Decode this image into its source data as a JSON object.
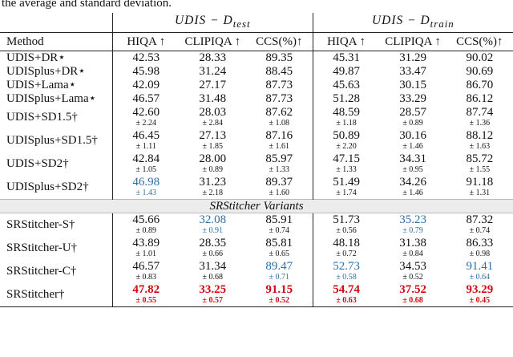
{
  "caption_tail": "the average and standard deviation.",
  "header": {
    "method": "Method",
    "group_test": "UDIS − D",
    "group_test_sub": "test",
    "group_train": "UDIS − D",
    "group_train_sub": "train",
    "metrics": [
      "HIQA ↑",
      "CLIPIQA ↑",
      "CCS(%)↑",
      "HIQA ↑",
      "CLIPIQA ↑",
      "CCS(%)↑"
    ]
  },
  "variant_label": "SRStitcher Variants",
  "rows_single": [
    {
      "method": "UDIS+DR⋆",
      "vals": [
        "42.53",
        "28.33",
        "89.35",
        "45.31",
        "31.29",
        "90.02"
      ]
    },
    {
      "method": "UDISplus+DR⋆",
      "vals": [
        "45.98",
        "31.24",
        "88.45",
        "49.87",
        "33.47",
        "90.69"
      ]
    },
    {
      "method": "UDIS+Lama⋆",
      "vals": [
        "42.09",
        "27.17",
        "87.73",
        "45.63",
        "30.15",
        "86.70"
      ]
    },
    {
      "method": "UDISplus+Lama⋆",
      "vals": [
        "46.57",
        "31.48",
        "87.73",
        "51.28",
        "33.29",
        "86.12"
      ]
    }
  ],
  "rows_double": [
    {
      "method": "UDIS+SD1.5†",
      "means": [
        "42.60",
        "28.03",
        "87.62",
        "48.59",
        "28.57",
        "87.74"
      ],
      "stds": [
        "± 2.24",
        "± 2.84",
        "± 1.08",
        "± 1.18",
        "± 0.89",
        "± 1.36"
      ],
      "colors": [
        "",
        "",
        "",
        "",
        "",
        ""
      ]
    },
    {
      "method": "UDISplus+SD1.5†",
      "means": [
        "46.45",
        "27.13",
        "87.16",
        "50.89",
        "30.16",
        "88.12"
      ],
      "stds": [
        "± 1.11",
        "± 1.85",
        "± 1.61",
        "± 2.20",
        "± 1.46",
        "± 1.63"
      ],
      "colors": [
        "",
        "",
        "",
        "",
        "",
        ""
      ]
    },
    {
      "method": "UDIS+SD2†",
      "means": [
        "42.84",
        "28.00",
        "85.97",
        "47.15",
        "34.31",
        "85.72"
      ],
      "stds": [
        "± 1.05",
        "± 0.89",
        "± 1.33",
        "± 1.33",
        "± 0.95",
        "± 1.55"
      ],
      "colors": [
        "",
        "",
        "",
        "",
        "",
        ""
      ]
    },
    {
      "method": "UDISplus+SD2†",
      "means": [
        "46.98",
        "31.23",
        "89.37",
        "51.49",
        "34.26",
        "91.18"
      ],
      "stds": [
        "± 1.43",
        "± 2.18",
        "± 1.60",
        "± 1.74",
        "± 1.46",
        "± 1.31"
      ],
      "colors": [
        "blue",
        "",
        "",
        "",
        "",
        ""
      ]
    }
  ],
  "rows_variants": [
    {
      "method": "SRStitcher-S†",
      "means": [
        "45.66",
        "32.08",
        "85.91",
        "51.73",
        "35.23",
        "87.32"
      ],
      "stds": [
        "± 0.89",
        "± 0.91",
        "± 0.74",
        "± 0.56",
        "± 0.79",
        "± 0.74"
      ],
      "colors": [
        "",
        "blue",
        "",
        "",
        "blue",
        ""
      ]
    },
    {
      "method": "SRStitcher-U†",
      "means": [
        "43.89",
        "28.35",
        "85.81",
        "48.18",
        "31.38",
        "86.33"
      ],
      "stds": [
        "± 1.01",
        "± 0.66",
        "± 0.65",
        "± 0.72",
        "± 0.84",
        "± 0.98"
      ],
      "colors": [
        "",
        "",
        "",
        "",
        "",
        ""
      ]
    },
    {
      "method": "SRStitcher-C†",
      "means": [
        "46.57",
        "31.34",
        "89.47",
        "52.73",
        "34.53",
        "91.41"
      ],
      "stds": [
        "± 0.83",
        "± 0.68",
        "± 0.71",
        "± 0.58",
        "± 0.52",
        "± 0.64"
      ],
      "colors": [
        "",
        "",
        "blue",
        "blue",
        "",
        "blue"
      ]
    },
    {
      "method": "SRStitcher†",
      "means": [
        "47.82",
        "33.25",
        "91.15",
        "54.74",
        "37.52",
        "93.29"
      ],
      "stds": [
        "± 0.55",
        "± 0.57",
        "± 0.52",
        "± 0.63",
        "± 0.68",
        "± 0.45"
      ],
      "colors": [
        "red",
        "red",
        "red",
        "red",
        "red",
        "red"
      ]
    }
  ],
  "colors": {
    "best": "#d10a10",
    "second": "#2e6ea8",
    "band": "#ececec"
  }
}
